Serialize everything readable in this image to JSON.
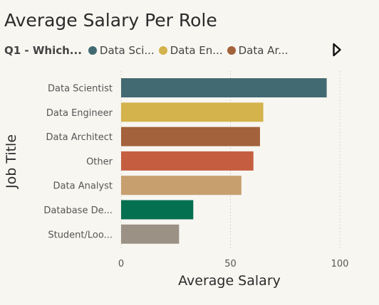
{
  "chart_data": {
    "type": "bar",
    "orientation": "horizontal",
    "title": "Average Salary Per Role",
    "legend_title": "Q1 - Which...",
    "legend": [
      {
        "label": "Data Sci...",
        "color": "#426a72"
      },
      {
        "label": "Data En...",
        "color": "#d4b24c"
      },
      {
        "label": "Data Ar...",
        "color": "#a3623b"
      }
    ],
    "categories": [
      "Data Scientist",
      "Data Engineer",
      "Data Architect",
      "Other",
      "Data Analyst",
      "Database De...",
      "Student/Loo..."
    ],
    "values": [
      94,
      65,
      63.5,
      60.5,
      55,
      33,
      26.5
    ],
    "colors": [
      "#426a72",
      "#d4b24c",
      "#a3623b",
      "#c55e41",
      "#c79f6f",
      "#047050",
      "#9b9185"
    ],
    "xlabel": "Average Salary",
    "ylabel": "Job Title",
    "xlim": [
      0,
      100
    ],
    "xticks": [
      "0",
      "50",
      "100"
    ],
    "grid": true,
    "legend_position": "top"
  }
}
